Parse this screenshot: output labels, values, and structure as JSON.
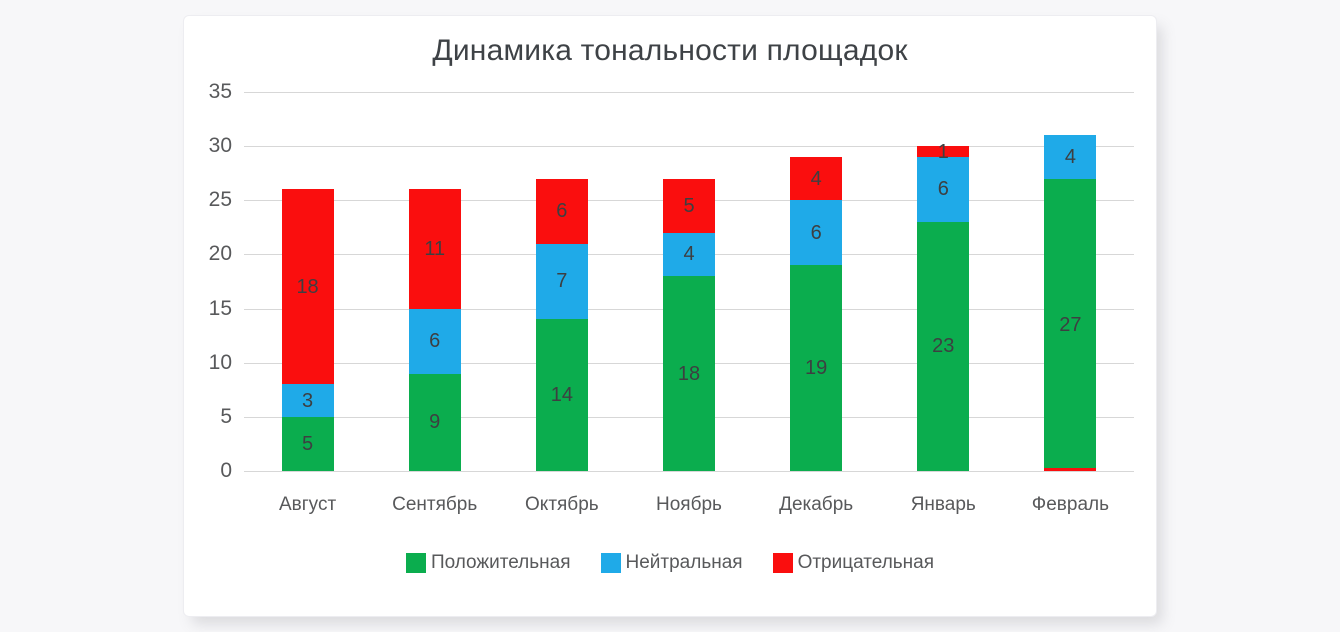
{
  "window": {
    "background": "#f7f7f9",
    "card_background": "#ffffff"
  },
  "chart_data": {
    "type": "bar",
    "variant": "stacked",
    "title": "Динамика тональности площадок",
    "categories": [
      "Август",
      "Сентябрь",
      "Октябрь",
      "Ноябрь",
      "Декабрь",
      "Январь",
      "Февраль"
    ],
    "series": [
      {
        "name": "Положительная",
        "color": "#0bad4e",
        "values": [
          5,
          9,
          14,
          18,
          19,
          23,
          27
        ]
      },
      {
        "name": "Нейтральная",
        "color": "#1faae8",
        "values": [
          3,
          6,
          7,
          4,
          6,
          6,
          4
        ]
      },
      {
        "name": "Отрицательная",
        "color": "#fa0e0e",
        "values": [
          18,
          11,
          6,
          5,
          4,
          1,
          0
        ]
      }
    ],
    "y_axis": {
      "min": 0,
      "max": 35,
      "step": 5,
      "tick_labels": [
        "0",
        "5",
        "10",
        "15",
        "20",
        "25",
        "30",
        "35"
      ]
    },
    "grid": true,
    "grid_color": "#d7d7d7",
    "axis_label_color": "#58595b",
    "value_label_color": "#3d3f41",
    "title_color": "#3e4246",
    "legend_position": "bottom"
  }
}
